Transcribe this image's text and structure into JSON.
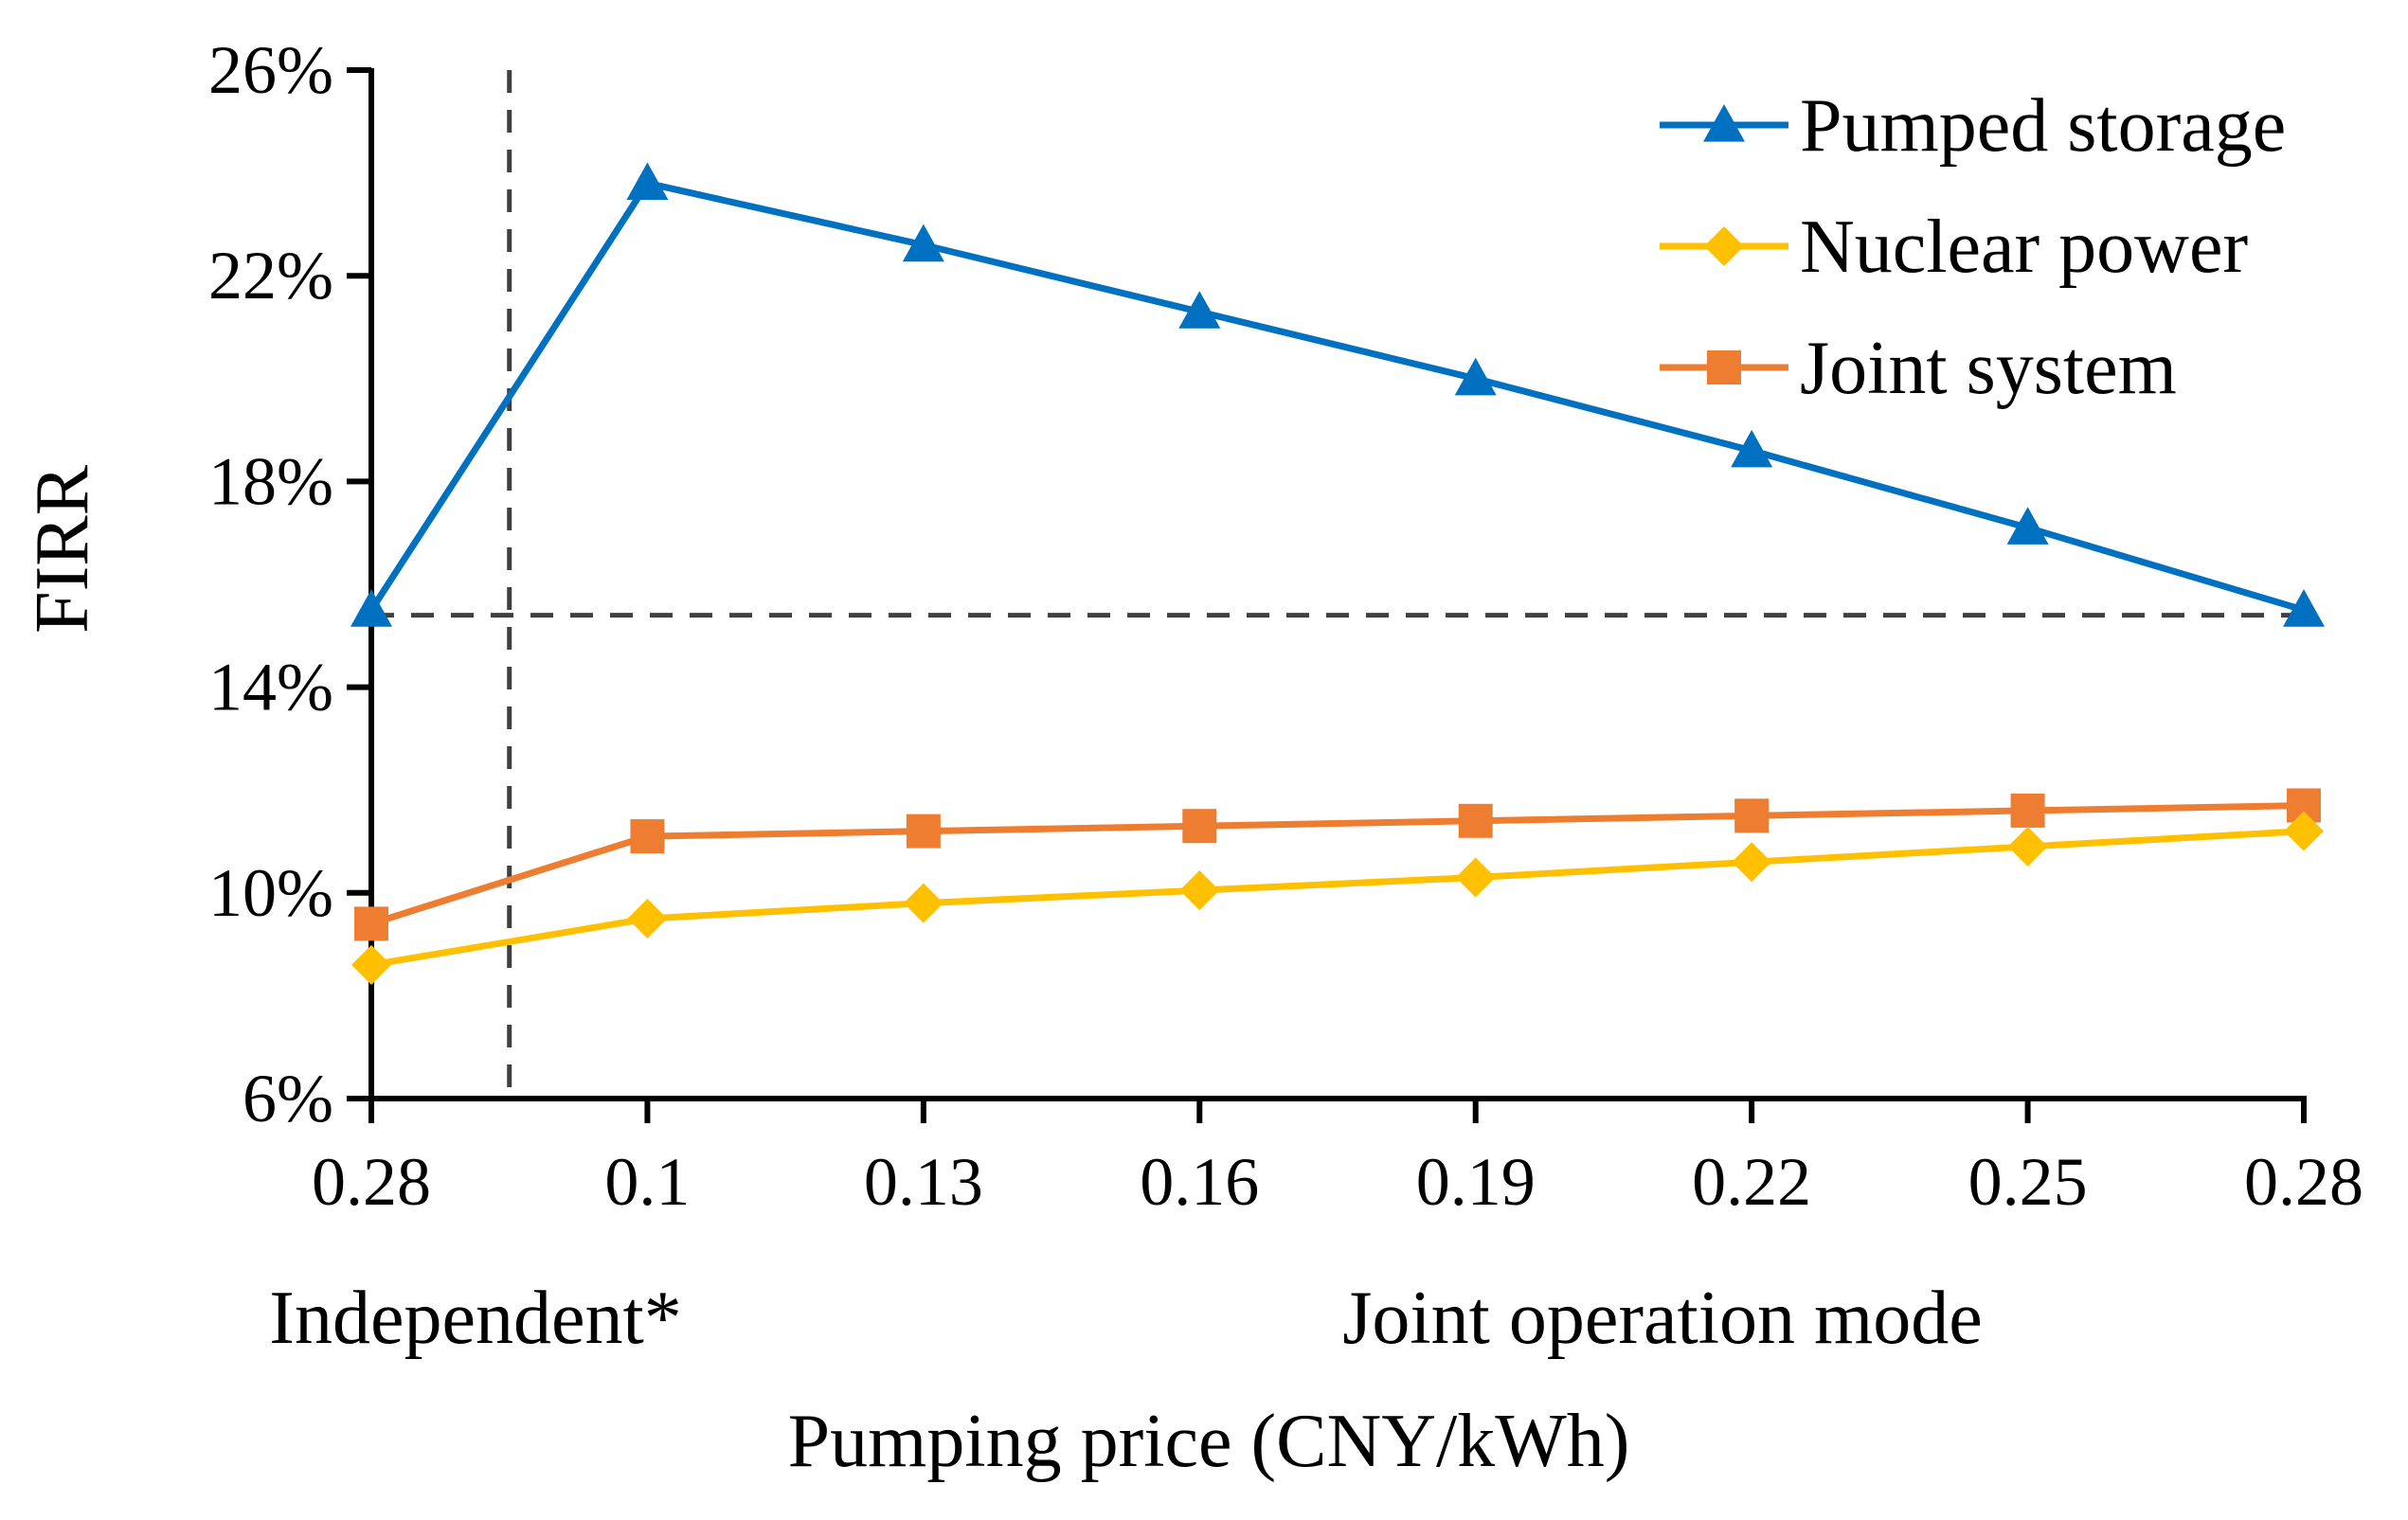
{
  "chart_data": {
    "type": "line",
    "title": "",
    "xlabel": "Pumping price (CNY/kWh)",
    "ylabel": "FIRR",
    "categories": [
      "0.28",
      "0.1",
      "0.13",
      "0.16",
      "0.19",
      "0.22",
      "0.25",
      "0.28"
    ],
    "group_labels": {
      "independent": "Independent*",
      "joint": "Joint operation mode"
    },
    "ylim": [
      6,
      26
    ],
    "yticks": [
      6,
      10,
      14,
      18,
      22,
      26
    ],
    "ytick_labels": [
      "6%",
      "10%",
      "14%",
      "18%",
      "22%",
      "26%"
    ],
    "reference_lines": {
      "horizontal_y": 15.4,
      "vertical_between": [
        0,
        1
      ]
    },
    "legend_position": "top-right",
    "series": [
      {
        "name": "Pumped storage",
        "marker": "triangle",
        "color": "#0070C0",
        "values": [
          15.5,
          23.8,
          22.6,
          21.3,
          20.0,
          18.6,
          17.1,
          15.5
        ]
      },
      {
        "name": "Nuclear power",
        "marker": "diamond",
        "color": "#FFC000",
        "values": [
          8.6,
          9.5,
          9.8,
          10.05,
          10.3,
          10.6,
          10.9,
          11.2
        ]
      },
      {
        "name": "Joint system",
        "marker": "square",
        "color": "#ED7D31",
        "values": [
          9.4,
          11.1,
          11.2,
          11.3,
          11.4,
          11.5,
          11.6,
          11.7
        ]
      }
    ]
  }
}
